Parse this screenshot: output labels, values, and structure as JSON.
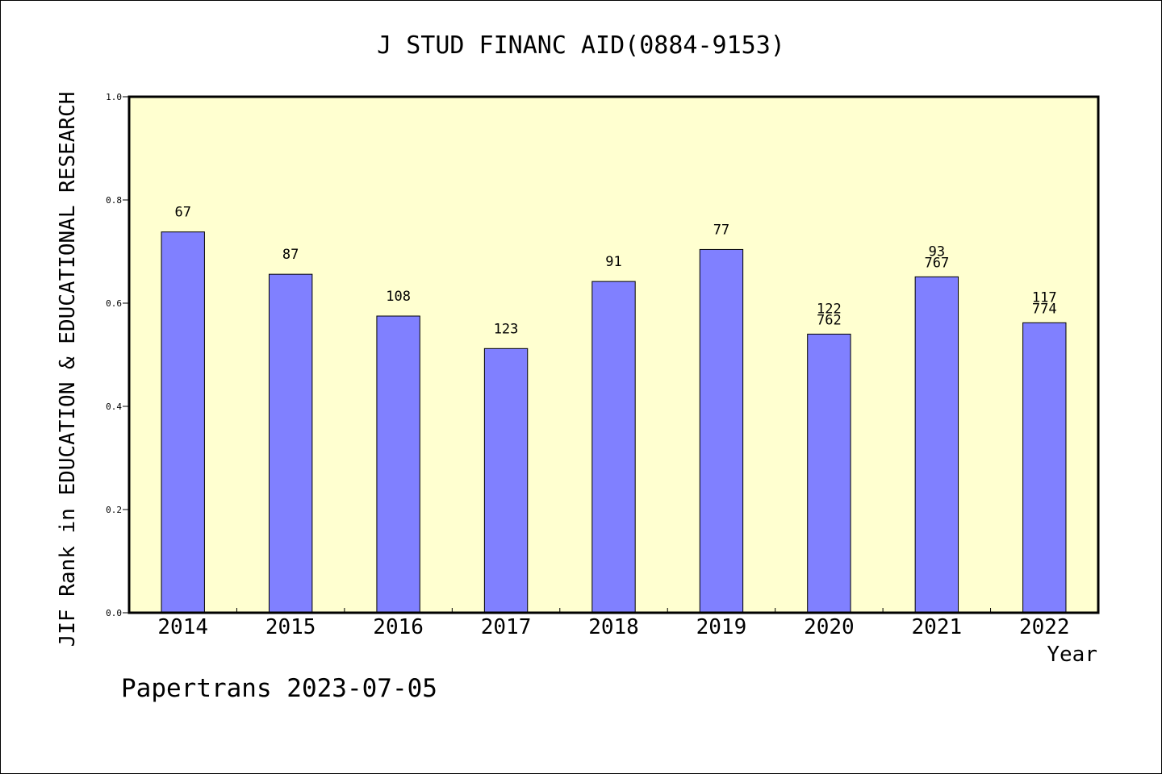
{
  "chart_data": {
    "type": "bar",
    "title": "J STUD FINANC AID(0884-9153)",
    "xlabel": "Year",
    "ylabel": "JIF Rank in EDUCATION & EDUCATIONAL RESEARCH",
    "ylim": [
      0,
      1.0
    ],
    "yticks": [
      "0.0",
      "0.2",
      "0.4",
      "0.6",
      "0.8",
      "1.0"
    ],
    "grid": false,
    "categories": [
      "2014",
      "2015",
      "2016",
      "2017",
      "2018",
      "2019",
      "2020",
      "2021",
      "2022"
    ],
    "values": [
      0.738,
      0.656,
      0.575,
      0.512,
      0.642,
      0.704,
      0.54,
      0.651,
      0.562
    ],
    "labels": [
      [
        "67"
      ],
      [
        "87"
      ],
      [
        "108"
      ],
      [
        "123"
      ],
      [
        "91"
      ],
      [
        "77"
      ],
      [
        "122",
        "762"
      ],
      [
        "93",
        "767"
      ],
      [
        "117",
        "774"
      ]
    ],
    "colors": {
      "plot_background": "#ffffd0",
      "bar_fill": "#8080ff",
      "bar_stroke": "#000000"
    }
  },
  "footer": {
    "text": "Papertrans 2023-07-05"
  }
}
